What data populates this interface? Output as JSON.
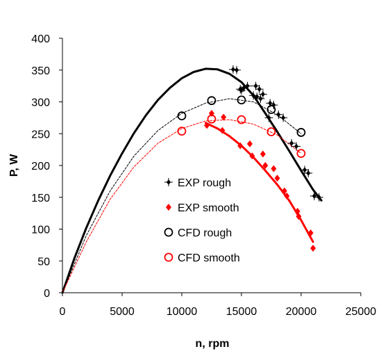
{
  "chart_data": {
    "type": "scatter",
    "xlabel": "n, rpm",
    "ylabel": "P, W",
    "xlim": [
      0,
      25000
    ],
    "ylim": [
      0,
      400
    ],
    "xticks": [
      0,
      5000,
      10000,
      15000,
      20000,
      25000
    ],
    "yticks": [
      0,
      50,
      100,
      150,
      200,
      250,
      300,
      350,
      400
    ],
    "grid": false,
    "legend_position": "center",
    "series": [
      {
        "name": "EXP rough",
        "kind": "marker",
        "marker": "plus-diamond",
        "color": "#000000",
        "x": [
          14300,
          14600,
          14900,
          15000,
          15200,
          15500,
          16000,
          16200,
          16300,
          16500,
          16600,
          16800,
          17300,
          17400,
          17700,
          18100,
          18500,
          19200,
          19600,
          20300,
          20600,
          21100,
          21500
        ],
        "y": [
          351,
          350,
          320,
          318,
          322,
          325,
          310,
          325,
          308,
          320,
          305,
          312,
          275,
          298,
          295,
          280,
          275,
          235,
          230,
          193,
          188,
          152,
          150
        ]
      },
      {
        "name": "EXP smooth",
        "kind": "marker",
        "marker": "diamond",
        "color": "#ff0000",
        "x": [
          12100,
          12500,
          13500,
          13400,
          14900,
          15700,
          15900,
          16800,
          17000,
          17700,
          18000,
          18600,
          18800,
          19700,
          19800,
          20800,
          21000
        ],
        "y": [
          263,
          282,
          276,
          255,
          231,
          234,
          215,
          218,
          200,
          195,
          180,
          160,
          152,
          128,
          120,
          94,
          70
        ]
      },
      {
        "name": "CFD rough",
        "kind": "marker",
        "marker": "circle",
        "color": "#000000",
        "x": [
          10000,
          12500,
          15000,
          17500,
          20000
        ],
        "y": [
          278,
          302,
          303,
          288,
          252
        ]
      },
      {
        "name": "CFD smooth",
        "kind": "marker",
        "marker": "circle",
        "color": "#ff0000",
        "x": [
          10000,
          12500,
          15000,
          17500,
          20000
        ],
        "y": [
          254,
          273,
          272,
          253,
          219
        ]
      },
      {
        "kind": "curve",
        "style": "solid",
        "color": "#000000",
        "x": [
          0,
          1000,
          2000,
          3000,
          4000,
          5000,
          6000,
          7000,
          8000,
          9000,
          10000,
          11000,
          12000,
          13000,
          14000,
          15000,
          16000,
          17000,
          18000,
          19000,
          20000,
          21000,
          21700
        ],
        "y": [
          0,
          54,
          102,
          145,
          184,
          219,
          251,
          279,
          303,
          322,
          337,
          347,
          352,
          351,
          344,
          331,
          310,
          282,
          253,
          223,
          192,
          162,
          145
        ]
      },
      {
        "kind": "curve",
        "style": "solid",
        "color": "#ff0000",
        "x": [
          12000,
          13000,
          14000,
          15000,
          16000,
          17000,
          18000,
          19000,
          20000,
          21000
        ],
        "y": [
          267,
          258,
          246,
          231,
          213,
          192,
          170,
          145,
          114,
          80
        ]
      },
      {
        "kind": "curve",
        "style": "dashed",
        "color": "#000000",
        "x": [
          0,
          2000,
          4000,
          6000,
          8000,
          10000,
          12000,
          14000,
          16000,
          18000,
          20000
        ],
        "y": [
          0,
          90,
          160,
          215,
          255,
          282,
          298,
          305,
          300,
          280,
          250
        ]
      },
      {
        "kind": "curve",
        "style": "dashed",
        "color": "#ff0000",
        "x": [
          0,
          2000,
          4000,
          6000,
          8000,
          10000,
          12000,
          14000,
          16000,
          18000,
          20000
        ],
        "y": [
          0,
          80,
          147,
          198,
          235,
          258,
          270,
          272,
          265,
          248,
          219
        ]
      }
    ]
  }
}
